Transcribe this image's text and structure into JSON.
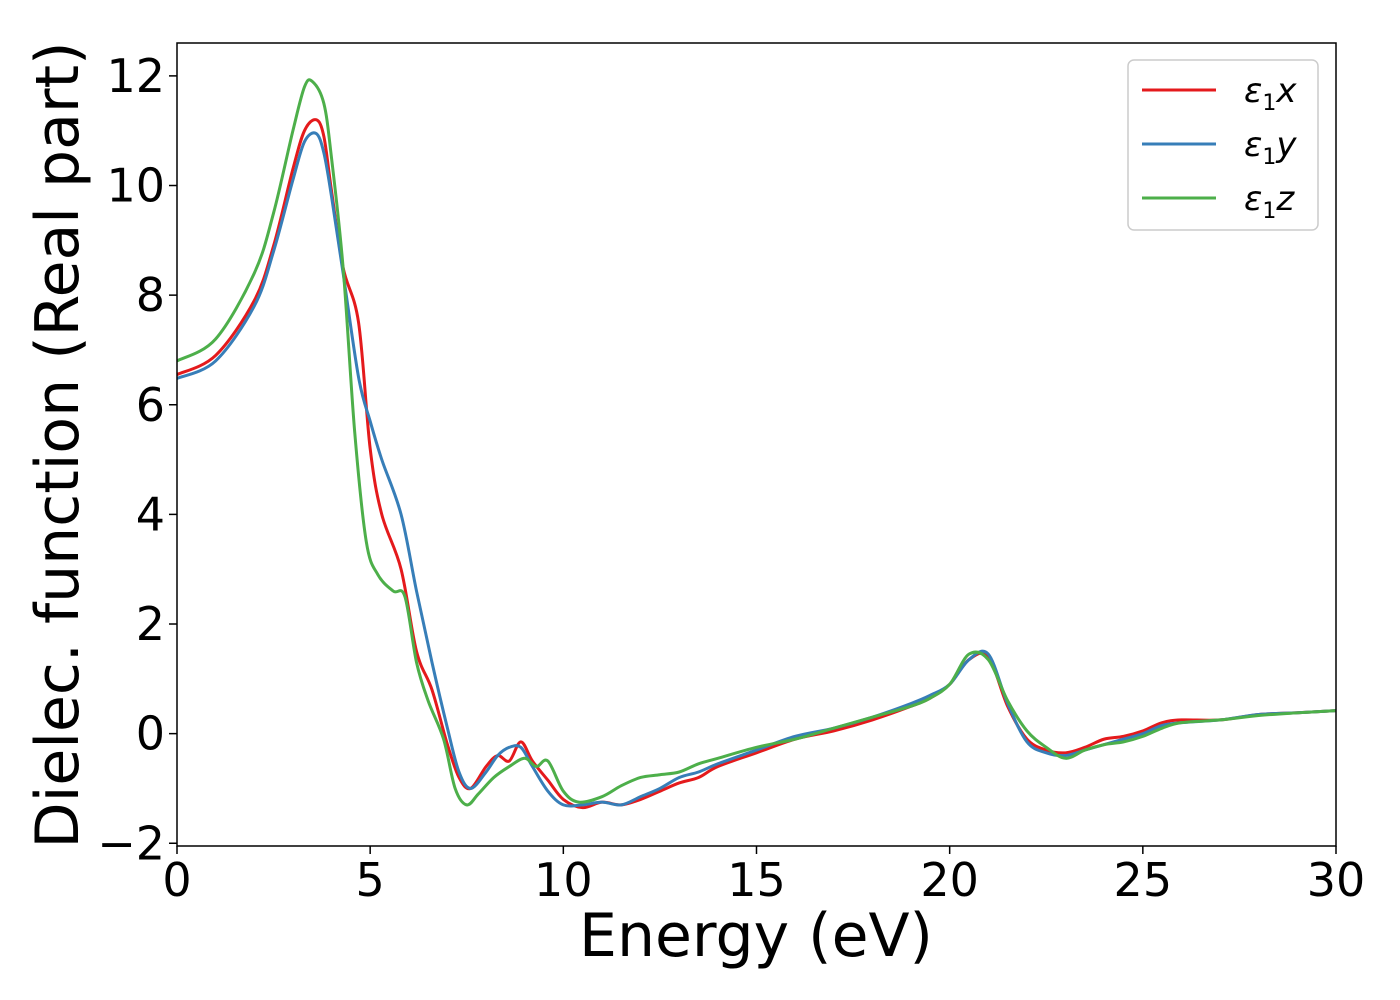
{
  "chart_data": {
    "type": "line",
    "title": "",
    "xlabel": "Energy (eV)",
    "ylabel": "Dielec. function (Real part)",
    "xlim": [
      0,
      30
    ],
    "ylim": [
      -2.05,
      12.6
    ],
    "x_ticks": [
      0,
      5,
      10,
      15,
      20,
      25,
      30
    ],
    "x_tick_labels": [
      "0",
      "5",
      "10",
      "15",
      "20",
      "25",
      "30"
    ],
    "y_ticks": [
      -2,
      0,
      2,
      4,
      6,
      8,
      10,
      12
    ],
    "y_tick_labels": [
      "−2",
      "0",
      "2",
      "4",
      "6",
      "8",
      "10",
      "12"
    ],
    "grid": false,
    "legend_position": "top-right",
    "series": [
      {
        "name": "ε1x",
        "legend_main": "ε",
        "legend_sub": "1",
        "legend_var": "x",
        "color": "#e41a1c",
        "x": [
          0,
          1,
          2,
          2.5,
          3,
          3.3,
          3.6,
          3.8,
          4.0,
          4.3,
          4.7,
          5.0,
          5.3,
          5.8,
          6.2,
          6.6,
          7.0,
          7.3,
          7.6,
          8.0,
          8.3,
          8.6,
          8.9,
          9.2,
          9.6,
          10.0,
          10.5,
          11.0,
          11.5,
          12.0,
          12.5,
          13.0,
          13.5,
          14.0,
          15.0,
          16.0,
          17.0,
          18.0,
          19.0,
          19.5,
          20.0,
          20.5,
          21.0,
          21.5,
          22.0,
          22.5,
          23.0,
          23.5,
          24.0,
          24.5,
          25.0,
          25.5,
          26.0,
          27.0,
          28.0,
          29.0,
          30.0
        ],
        "y": [
          6.55,
          6.9,
          7.9,
          8.9,
          10.3,
          11.0,
          11.2,
          10.9,
          9.9,
          8.5,
          7.5,
          5.2,
          4.0,
          3.0,
          1.5,
          0.8,
          -0.2,
          -0.8,
          -1.0,
          -0.6,
          -0.4,
          -0.5,
          -0.15,
          -0.5,
          -0.85,
          -1.2,
          -1.35,
          -1.25,
          -1.3,
          -1.2,
          -1.05,
          -0.9,
          -0.8,
          -0.6,
          -0.35,
          -0.1,
          0.05,
          0.25,
          0.5,
          0.65,
          0.9,
          1.35,
          1.4,
          0.5,
          -0.1,
          -0.3,
          -0.35,
          -0.25,
          -0.1,
          -0.05,
          0.05,
          0.2,
          0.25,
          0.25,
          0.35,
          0.38,
          0.42
        ]
      },
      {
        "name": "ε1y",
        "legend_main": "ε",
        "legend_sub": "1",
        "legend_var": "y",
        "color": "#377eb8",
        "x": [
          0,
          1,
          2,
          2.5,
          3,
          3.3,
          3.6,
          3.8,
          4.0,
          4.3,
          4.7,
          5.0,
          5.3,
          5.8,
          6.2,
          6.6,
          7.0,
          7.3,
          7.6,
          8.0,
          8.3,
          8.6,
          8.9,
          9.2,
          9.6,
          10.0,
          10.5,
          11.0,
          11.5,
          12.0,
          12.5,
          13.0,
          13.5,
          14.0,
          15.0,
          16.0,
          17.0,
          18.0,
          19.0,
          19.5,
          20.0,
          20.5,
          21.0,
          21.5,
          22.0,
          22.5,
          23.0,
          23.5,
          24.0,
          24.5,
          25.0,
          25.5,
          26.0,
          27.0,
          28.0,
          29.0,
          30.0
        ],
        "y": [
          6.48,
          6.8,
          7.8,
          8.8,
          10.1,
          10.8,
          10.95,
          10.6,
          9.8,
          8.4,
          6.5,
          5.7,
          5.0,
          4.0,
          2.6,
          1.3,
          0.1,
          -0.7,
          -1.0,
          -0.7,
          -0.4,
          -0.25,
          -0.25,
          -0.6,
          -1.05,
          -1.3,
          -1.3,
          -1.25,
          -1.3,
          -1.15,
          -1.0,
          -0.8,
          -0.7,
          -0.55,
          -0.3,
          -0.05,
          0.1,
          0.3,
          0.55,
          0.7,
          0.9,
          1.35,
          1.45,
          0.55,
          -0.15,
          -0.35,
          -0.4,
          -0.3,
          -0.2,
          -0.1,
          0.0,
          0.15,
          0.2,
          0.25,
          0.35,
          0.38,
          0.42
        ]
      },
      {
        "name": "ε1z",
        "legend_main": "ε",
        "legend_sub": "1",
        "legend_var": "z",
        "color": "#4daf4a",
        "x": [
          0,
          1,
          2,
          2.5,
          3,
          3.3,
          3.5,
          3.8,
          4.0,
          4.3,
          4.6,
          4.9,
          5.2,
          5.6,
          5.9,
          6.2,
          6.5,
          6.9,
          7.2,
          7.5,
          7.8,
          8.2,
          8.6,
          9.0,
          9.3,
          9.6,
          10.0,
          10.4,
          11.0,
          11.5,
          12.0,
          12.5,
          13.0,
          13.5,
          14.0,
          15.0,
          16.0,
          17.0,
          18.0,
          19.0,
          19.5,
          20.0,
          20.5,
          21.0,
          21.5,
          22.0,
          22.5,
          23.0,
          23.5,
          24.0,
          24.5,
          25.0,
          25.5,
          26.0,
          27.0,
          28.0,
          29.0,
          30.0
        ],
        "y": [
          6.8,
          7.2,
          8.4,
          9.5,
          11.0,
          11.8,
          11.9,
          11.5,
          10.5,
          8.5,
          5.5,
          3.5,
          2.9,
          2.6,
          2.5,
          1.3,
          0.6,
          -0.1,
          -1.0,
          -1.3,
          -1.1,
          -0.8,
          -0.6,
          -0.45,
          -0.6,
          -0.5,
          -1.05,
          -1.25,
          -1.15,
          -0.95,
          -0.8,
          -0.75,
          -0.7,
          -0.55,
          -0.45,
          -0.25,
          -0.1,
          0.1,
          0.3,
          0.5,
          0.65,
          0.9,
          1.45,
          1.35,
          0.6,
          0.05,
          -0.25,
          -0.45,
          -0.3,
          -0.2,
          -0.15,
          -0.05,
          0.1,
          0.2,
          0.25,
          0.33,
          0.38,
          0.42
        ]
      }
    ]
  }
}
